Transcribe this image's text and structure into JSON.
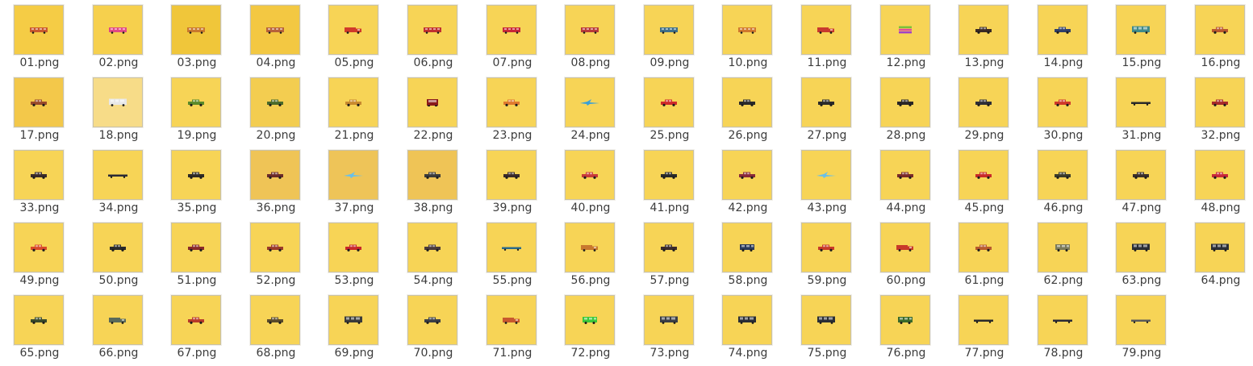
{
  "window": {
    "content_background": "#ffffff"
  },
  "files": [
    {
      "name": "01.png",
      "bg": "#f5cc45",
      "sprite": "bus",
      "color": "#c9582e"
    },
    {
      "name": "02.png",
      "bg": "#f6d04d",
      "sprite": "bus",
      "color": "#e04a86"
    },
    {
      "name": "03.png",
      "bg": "#f0c63a",
      "sprite": "bus",
      "color": "#c9782e"
    },
    {
      "name": "04.png",
      "bg": "#f3c842",
      "sprite": "bus",
      "color": "#b7623a"
    },
    {
      "name": "05.png",
      "bg": "#f7d456",
      "sprite": "truck",
      "color": "#d03a2a"
    },
    {
      "name": "06.png",
      "bg": "#f7d456",
      "sprite": "bus",
      "color": "#c03030"
    },
    {
      "name": "07.png",
      "bg": "#f7d456",
      "sprite": "bus",
      "color": "#c82838"
    },
    {
      "name": "08.png",
      "bg": "#f7d456",
      "sprite": "bus",
      "color": "#b83a3a"
    },
    {
      "name": "09.png",
      "bg": "#f7d456",
      "sprite": "bus",
      "color": "#3f6f8a"
    },
    {
      "name": "10.png",
      "bg": "#f7d456",
      "sprite": "bus",
      "color": "#d0782e"
    },
    {
      "name": "11.png",
      "bg": "#f7d456",
      "sprite": "truck",
      "color": "#c83a2e"
    },
    {
      "name": "12.png",
      "bg": "#f7d456",
      "sprite": "stack",
      "color": "#7ac23a"
    },
    {
      "name": "13.png",
      "bg": "#f7d456",
      "sprite": "car",
      "color": "#3a2a24"
    },
    {
      "name": "14.png",
      "bg": "#f7d456",
      "sprite": "car",
      "color": "#2f3f6a"
    },
    {
      "name": "15.png",
      "bg": "#f7d456",
      "sprite": "big",
      "color": "#3f8a8a"
    },
    {
      "name": "16.png",
      "bg": "#f7d456",
      "sprite": "car",
      "color": "#b8562e"
    },
    {
      "name": "17.png",
      "bg": "#f3c84a",
      "sprite": "car",
      "color": "#9a4a2a"
    },
    {
      "name": "18.png",
      "bg": "#f7dc88",
      "sprite": "big",
      "color": "#e8e8e8"
    },
    {
      "name": "19.png",
      "bg": "#f7d456",
      "sprite": "car",
      "color": "#5a8a2a"
    },
    {
      "name": "20.png",
      "bg": "#f3cd50",
      "sprite": "car",
      "color": "#4a6a2a"
    },
    {
      "name": "21.png",
      "bg": "#f7d456",
      "sprite": "car",
      "color": "#c88a2e"
    },
    {
      "name": "22.png",
      "bg": "#f7d456",
      "sprite": "front",
      "color": "#8a1a1a"
    },
    {
      "name": "23.png",
      "bg": "#f7d456",
      "sprite": "car",
      "color": "#e07a2e"
    },
    {
      "name": "24.png",
      "bg": "#f7d456",
      "sprite": "plane",
      "color": "#3aa0d8"
    },
    {
      "name": "25.png",
      "bg": "#f7d456",
      "sprite": "car",
      "color": "#d02a2a"
    },
    {
      "name": "26.png",
      "bg": "#f7d456",
      "sprite": "car",
      "color": "#2a2a2a"
    },
    {
      "name": "27.png",
      "bg": "#f7d456",
      "sprite": "car",
      "color": "#2a2a2a"
    },
    {
      "name": "28.png",
      "bg": "#f7d456",
      "sprite": "car",
      "color": "#2a2626"
    },
    {
      "name": "29.png",
      "bg": "#f7d456",
      "sprite": "car",
      "color": "#2e2e36"
    },
    {
      "name": "30.png",
      "bg": "#f7d456",
      "sprite": "car",
      "color": "#d03a2a"
    },
    {
      "name": "31.png",
      "bg": "#f7d456",
      "sprite": "long",
      "color": "#2a2a2a"
    },
    {
      "name": "32.png",
      "bg": "#f7d456",
      "sprite": "car",
      "color": "#a82a2a"
    },
    {
      "name": "33.png",
      "bg": "#f7d456",
      "sprite": "car",
      "color": "#3a2a2a"
    },
    {
      "name": "34.png",
      "bg": "#f7d456",
      "sprite": "long",
      "color": "#2a2a36"
    },
    {
      "name": "35.png",
      "bg": "#f7d456",
      "sprite": "car",
      "color": "#2e2a26"
    },
    {
      "name": "36.png",
      "bg": "#efc456",
      "sprite": "car",
      "color": "#6a2a2a"
    },
    {
      "name": "37.png",
      "bg": "#eec458",
      "sprite": "plane",
      "color": "#6ac0e8"
    },
    {
      "name": "38.png",
      "bg": "#efc456",
      "sprite": "car",
      "color": "#3a3a3a"
    },
    {
      "name": "39.png",
      "bg": "#f7d456",
      "sprite": "car",
      "color": "#3a2a2a"
    },
    {
      "name": "40.png",
      "bg": "#f7d456",
      "sprite": "car",
      "color": "#c83a3a"
    },
    {
      "name": "41.png",
      "bg": "#f7d456",
      "sprite": "car",
      "color": "#2a2a2a"
    },
    {
      "name": "42.png",
      "bg": "#f7d456",
      "sprite": "car",
      "color": "#8a2a3a"
    },
    {
      "name": "43.png",
      "bg": "#f7d456",
      "sprite": "plane",
      "color": "#6ac0e8"
    },
    {
      "name": "44.png",
      "bg": "#f7d456",
      "sprite": "car",
      "color": "#7a2a2a"
    },
    {
      "name": "45.png",
      "bg": "#f7d456",
      "sprite": "car",
      "color": "#c82a2a"
    },
    {
      "name": "46.png",
      "bg": "#f7d456",
      "sprite": "car",
      "color": "#3a3a2a"
    },
    {
      "name": "47.png",
      "bg": "#f7d456",
      "sprite": "car",
      "color": "#3a2e2a"
    },
    {
      "name": "48.png",
      "bg": "#f7d456",
      "sprite": "car",
      "color": "#c8283a"
    },
    {
      "name": "49.png",
      "bg": "#f7d456",
      "sprite": "car",
      "color": "#d84a2a"
    },
    {
      "name": "50.png",
      "bg": "#f7d456",
      "sprite": "car",
      "color": "#2a2a2a"
    },
    {
      "name": "51.png",
      "bg": "#f7d456",
      "sprite": "car",
      "color": "#8a2a2a"
    },
    {
      "name": "52.png",
      "bg": "#f7d456",
      "sprite": "car",
      "color": "#9a3a2a"
    },
    {
      "name": "53.png",
      "bg": "#f7d456",
      "sprite": "car",
      "color": "#c8282a"
    },
    {
      "name": "54.png",
      "bg": "#f7d456",
      "sprite": "car",
      "color": "#4a3a3a"
    },
    {
      "name": "55.png",
      "bg": "#f7d456",
      "sprite": "long",
      "color": "#2a6a8a"
    },
    {
      "name": "56.png",
      "bg": "#f7d456",
      "sprite": "truck",
      "color": "#c8782e"
    },
    {
      "name": "57.png",
      "bg": "#f7d456",
      "sprite": "car",
      "color": "#3a2a2a"
    },
    {
      "name": "58.png",
      "bg": "#f7d456",
      "sprite": "van",
      "color": "#2a3a5a"
    },
    {
      "name": "59.png",
      "bg": "#f7d456",
      "sprite": "car",
      "color": "#c83a2a"
    },
    {
      "name": "60.png",
      "bg": "#f7d456",
      "sprite": "truck",
      "color": "#c83a2a"
    },
    {
      "name": "61.png",
      "bg": "#f7d456",
      "sprite": "car",
      "color": "#b85a2e"
    },
    {
      "name": "62.png",
      "bg": "#f7d456",
      "sprite": "van",
      "color": "#7a7a5a"
    },
    {
      "name": "63.png",
      "bg": "#f7d456",
      "sprite": "big",
      "color": "#2a2e36"
    },
    {
      "name": "64.png",
      "bg": "#f7d456",
      "sprite": "big",
      "color": "#2a2e36"
    },
    {
      "name": "65.png",
      "bg": "#f7d456",
      "sprite": "car",
      "color": "#3a4a2a"
    },
    {
      "name": "66.png",
      "bg": "#f7d456",
      "sprite": "truck",
      "color": "#5a6a5a"
    },
    {
      "name": "67.png",
      "bg": "#f7d456",
      "sprite": "car",
      "color": "#b83a2a"
    },
    {
      "name": "68.png",
      "bg": "#f7d456",
      "sprite": "car",
      "color": "#5a4a2a"
    },
    {
      "name": "69.png",
      "bg": "#f7d456",
      "sprite": "big",
      "color": "#3a3a3a"
    },
    {
      "name": "70.png",
      "bg": "#f7d456",
      "sprite": "car",
      "color": "#3a3e46"
    },
    {
      "name": "71.png",
      "bg": "#f7d456",
      "sprite": "truck",
      "color": "#c8582e"
    },
    {
      "name": "72.png",
      "bg": "#f7d456",
      "sprite": "van",
      "color": "#3ac83a"
    },
    {
      "name": "73.png",
      "bg": "#f7d456",
      "sprite": "big",
      "color": "#3a3e46"
    },
    {
      "name": "74.png",
      "bg": "#f7d456",
      "sprite": "big",
      "color": "#2a2e36"
    },
    {
      "name": "75.png",
      "bg": "#f7d456",
      "sprite": "big",
      "color": "#2a2e36"
    },
    {
      "name": "76.png",
      "bg": "#f7d456",
      "sprite": "van",
      "color": "#3a6a2a"
    },
    {
      "name": "77.png",
      "bg": "#f7d456",
      "sprite": "long",
      "color": "#2a2a2a"
    },
    {
      "name": "78.png",
      "bg": "#f7d456",
      "sprite": "long",
      "color": "#2a2a36"
    },
    {
      "name": "79.png",
      "bg": "#f7d456",
      "sprite": "long",
      "color": "#5a5a5a"
    }
  ]
}
